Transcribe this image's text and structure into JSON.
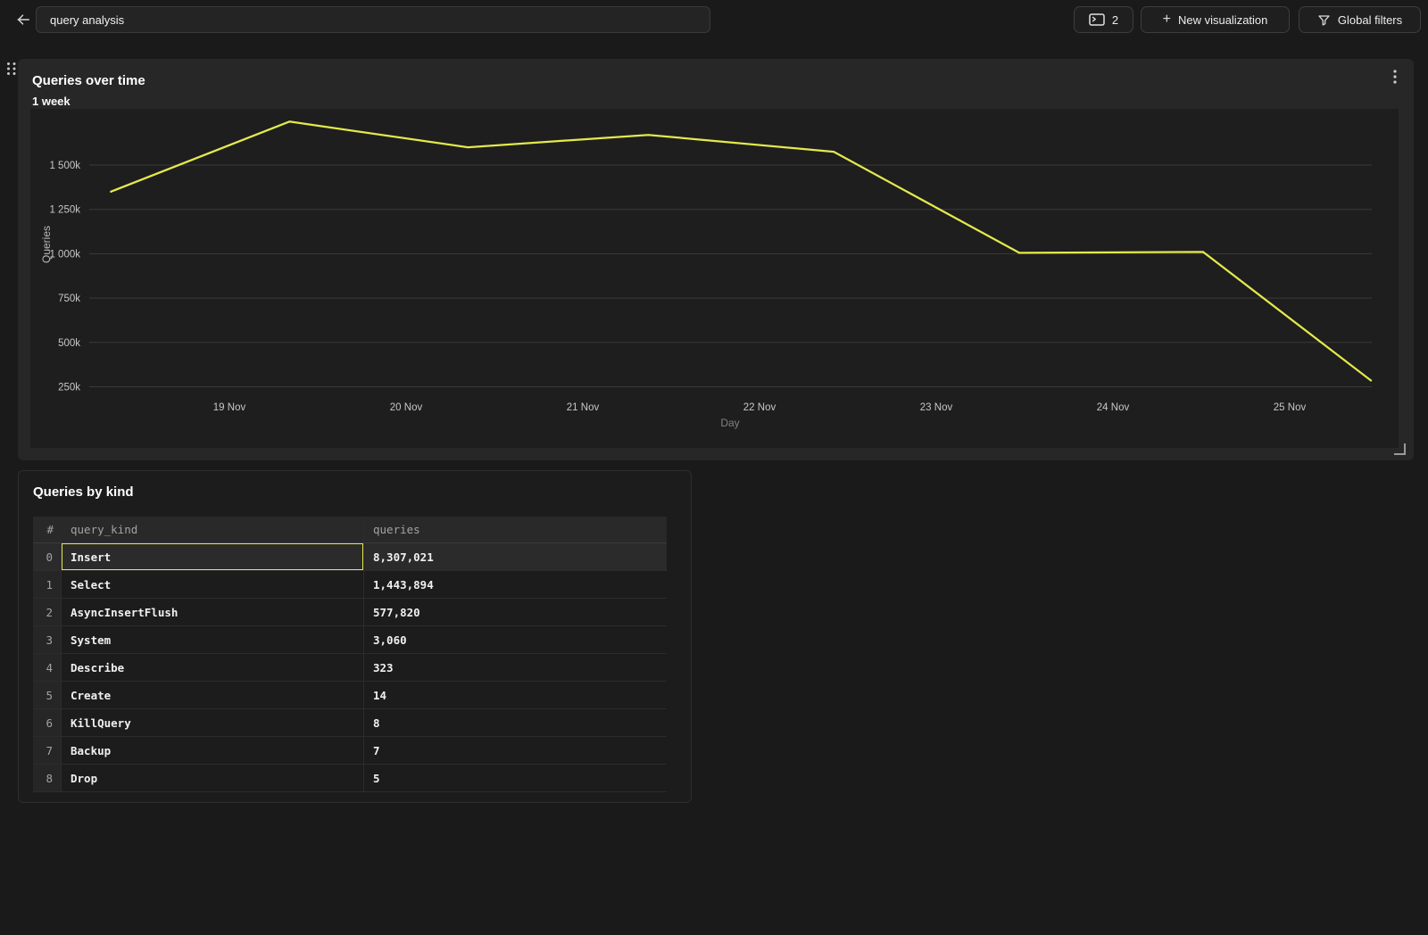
{
  "topbar": {
    "back_button": {
      "icon": "arrow-left-icon"
    },
    "title_input": {
      "value": "query analysis"
    },
    "visualization_count_button": {
      "icon": "panel-icon",
      "count": "2"
    },
    "new_visualization_button": {
      "icon": "plus-icon",
      "plus_glyph": "+",
      "label": "New visualization"
    },
    "global_filters_button": {
      "icon": "funnel-icon",
      "label": "Global filters"
    }
  },
  "chart_card": {
    "title": "Queries over time",
    "subtitle": "1 week",
    "menu_icon": "kebab-menu-icon",
    "drag_icon": "drag-handle-icon",
    "resize_icon": "resize-corner-icon"
  },
  "chart_data": {
    "type": "line",
    "title": "Queries over time",
    "subtitle": "1 week",
    "xlabel": "Day",
    "ylabel": "Queries",
    "x_tick_labels": [
      "19 Nov",
      "20 Nov",
      "21 Nov",
      "22 Nov",
      "23 Nov",
      "24 Nov",
      "25 Nov"
    ],
    "x_tick_days": [
      19,
      20,
      21,
      22,
      23,
      24,
      25
    ],
    "y_tick_labels": [
      "1 500k",
      "1 250k",
      "1 000k",
      "750k",
      "500k",
      "250k"
    ],
    "y_tick_values": [
      1500000,
      1250000,
      1000000,
      750000,
      500000,
      250000
    ],
    "ylim": [
      150000,
      1800000
    ],
    "grid": "horizontal",
    "legend": "none",
    "series": [
      {
        "name": "Queries",
        "color": "#e3e94c",
        "points": [
          {
            "day": 18.33,
            "value": 1350000
          },
          {
            "day": 19.34,
            "value": 1745000
          },
          {
            "day": 20.35,
            "value": 1600000
          },
          {
            "day": 21.37,
            "value": 1670000
          },
          {
            "day": 22.42,
            "value": 1575000
          },
          {
            "day": 23.47,
            "value": 1005000
          },
          {
            "day": 24.51,
            "value": 1010000
          },
          {
            "day": 25.46,
            "value": 285000
          }
        ]
      }
    ]
  },
  "table_card": {
    "title": "Queries by kind",
    "columns": {
      "index": "#",
      "kind": "query_kind",
      "queries": "queries"
    },
    "rows": [
      {
        "index": "0",
        "query_kind": "Insert",
        "queries": "8,307,021",
        "selected": true
      },
      {
        "index": "1",
        "query_kind": "Select",
        "queries": "1,443,894",
        "selected": false
      },
      {
        "index": "2",
        "query_kind": "AsyncInsertFlush",
        "queries": "577,820",
        "selected": false
      },
      {
        "index": "3",
        "query_kind": "System",
        "queries": "3,060",
        "selected": false
      },
      {
        "index": "4",
        "query_kind": "Describe",
        "queries": "323",
        "selected": false
      },
      {
        "index": "5",
        "query_kind": "Create",
        "queries": "14",
        "selected": false
      },
      {
        "index": "6",
        "query_kind": "KillQuery",
        "queries": "8",
        "selected": false
      },
      {
        "index": "7",
        "query_kind": "Backup",
        "queries": "7",
        "selected": false
      },
      {
        "index": "8",
        "query_kind": "Drop",
        "queries": "5",
        "selected": false
      }
    ]
  },
  "colors": {
    "accent_yellow": "#e3e94c",
    "page_bg": "#1a1a1a",
    "card_bg": "#272727",
    "plot_bg": "#1e1e1e",
    "gridline": "#3a3a3a",
    "tick_text": "#c7c7c7",
    "axis_title_dim": "#828282"
  }
}
